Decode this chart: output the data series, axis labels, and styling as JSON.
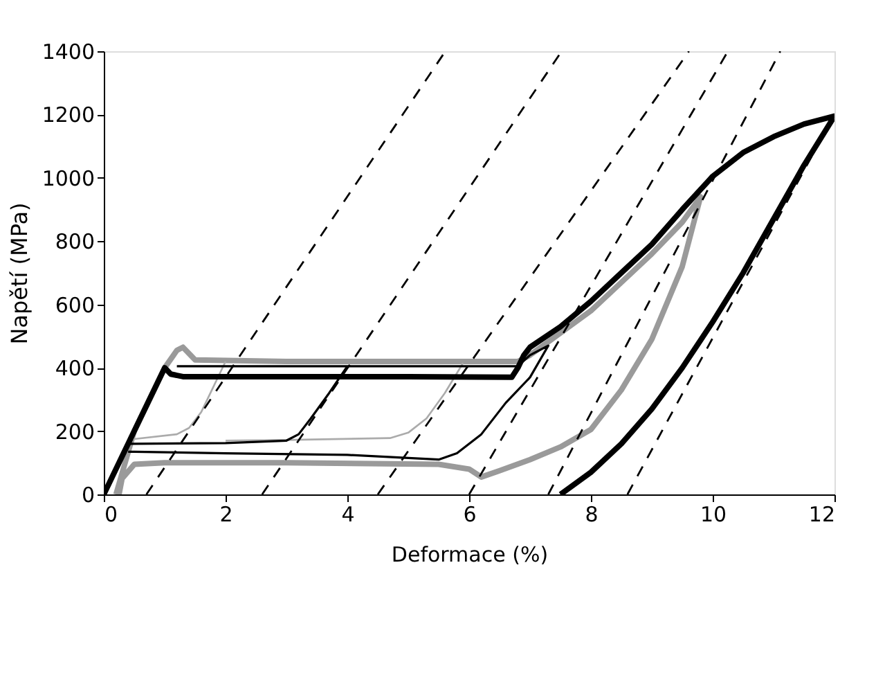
{
  "chart_data": {
    "type": "line",
    "xlabel": "Deformace (%)",
    "ylabel": "Napětí (MPa)",
    "xlim": [
      0,
      12
    ],
    "xticks": [
      0,
      2,
      4,
      6,
      8,
      10,
      12
    ],
    "ylim": [
      0,
      1400
    ],
    "yticks": [
      0,
      200,
      400,
      600,
      800,
      1000,
      1200,
      1400
    ],
    "grid": false,
    "marker": "none",
    "line_style": "solid",
    "series": [
      {
        "color": "#9a9a9a",
        "x": [
          0.2,
          0.5,
          1.0,
          1.2,
          1.3,
          1.5,
          3,
          5,
          6.8,
          7.0,
          8,
          9,
          9.5,
          9.8,
          9.5,
          9,
          8.5,
          8,
          7.5,
          7,
          6.5,
          6.2,
          6,
          5.5,
          3,
          1,
          0.5,
          0.3,
          0.25
        ],
        "values": [
          0,
          200,
          400,
          455,
          465,
          425,
          420,
          420,
          420,
          440,
          580,
          760,
          860,
          940,
          720,
          490,
          330,
          205,
          150,
          110,
          75,
          55,
          80,
          95,
          100,
          100,
          95,
          50,
          0
        ]
      },
      {
        "color": "#ababab",
        "x": [
          2.0,
          1.8,
          1.6,
          1.4,
          1.2,
          0.5,
          0.4
        ],
        "values": [
          420,
          340,
          260,
          210,
          190,
          175,
          175
        ]
      },
      {
        "color": "#ababab",
        "x": [
          5.9,
          5.6,
          5.3,
          5.0,
          4.7,
          3,
          2.0
        ],
        "values": [
          415,
          320,
          240,
          195,
          178,
          172,
          170
        ]
      },
      {
        "color": "#000000",
        "x": [
          4.0,
          3.7,
          3.4,
          3.2,
          3.0,
          2,
          0.5,
          0.4
        ],
        "values": [
          405,
          320,
          240,
          190,
          170,
          162,
          160,
          160
        ]
      },
      {
        "color": "#000000",
        "x": [
          1.2,
          3,
          6.8,
          7.0,
          7.3,
          7.0,
          6.6,
          6.2,
          5.8,
          5.5,
          4,
          2,
          0.5,
          0.4
        ],
        "values": [
          405,
          405,
          405,
          440,
          470,
          370,
          289,
          190,
          130,
          110,
          125,
          130,
          135,
          135
        ]
      },
      {
        "color": "#000000",
        "x": [
          0,
          0.5,
          1.0,
          1.1,
          1.3,
          3,
          5,
          6.7,
          6.8,
          6.9,
          7.0,
          7.5,
          8,
          8.5,
          9,
          9.5,
          10,
          10.5,
          11,
          11.5,
          12,
          11.5,
          11,
          10.5,
          10,
          9.5,
          9,
          8.5,
          8,
          7.5
        ],
        "values": [
          0,
          200,
          400,
          380,
          372,
          372,
          372,
          370,
          400,
          440,
          465,
          530,
          610,
          700,
          790,
          900,
          1005,
          1080,
          1130,
          1170,
          1195,
          1040,
          870,
          700,
          545,
          400,
          270,
          160,
          70,
          0
        ]
      },
      {
        "color": "#000000",
        "line_style": "dashed",
        "x": [
          0.7,
          5.61
        ],
        "values": [
          0,
          1400
        ]
      },
      {
        "color": "#000000",
        "line_style": "dashed",
        "x": [
          2.6,
          7.52
        ],
        "values": [
          0,
          1400
        ]
      },
      {
        "color": "#000000",
        "line_style": "dashed",
        "x": [
          4.5,
          9.61
        ],
        "values": [
          0,
          1400
        ]
      },
      {
        "color": "#000000",
        "line_style": "dashed",
        "x": [
          6.0,
          10.25
        ],
        "values": [
          0,
          1400
        ]
      },
      {
        "color": "#000000",
        "line_style": "dashed",
        "x": [
          7.3,
          11.11
        ],
        "values": [
          0,
          1400
        ]
      },
      {
        "color": "#000000",
        "line_style": "dashed",
        "x": [
          8.6,
          12
        ],
        "values": [
          0,
          1200
        ]
      }
    ]
  }
}
